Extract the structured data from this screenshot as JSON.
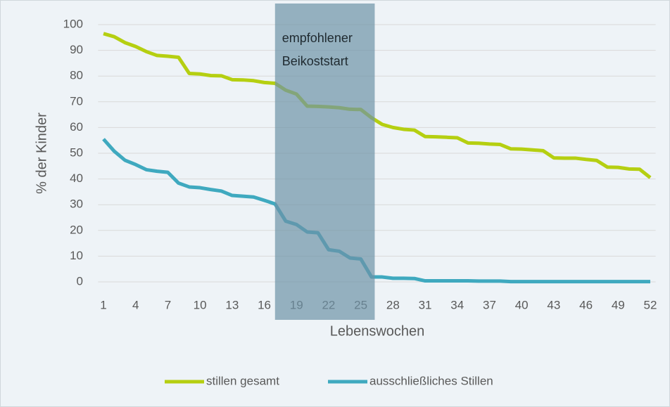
{
  "chart_data": {
    "type": "line",
    "x": [
      1,
      2,
      3,
      4,
      5,
      6,
      7,
      8,
      9,
      10,
      11,
      12,
      13,
      14,
      15,
      16,
      17,
      18,
      19,
      20,
      21,
      22,
      23,
      24,
      25,
      26,
      27,
      28,
      29,
      30,
      31,
      32,
      33,
      34,
      35,
      36,
      37,
      38,
      39,
      40,
      41,
      42,
      43,
      44,
      45,
      46,
      47,
      48,
      49,
      50,
      51,
      52
    ],
    "series": [
      {
        "name": "stillen gesamt",
        "color": "#b5cf11",
        "values": [
          96.5,
          95.3,
          93,
          91.5,
          89.5,
          88,
          87.7,
          87.3,
          81,
          80.8,
          80.2,
          80.1,
          78.6,
          78.5,
          78.2,
          77.5,
          77.2,
          74.5,
          73,
          68.3,
          68.2,
          68,
          67.7,
          67.1,
          67,
          63.8,
          61.2,
          60,
          59.3,
          59,
          56.5,
          56.4,
          56.2,
          56,
          54,
          53.9,
          53.6,
          53.4,
          51.7,
          51.6,
          51.3,
          51,
          48.2,
          48.1,
          48.1,
          47.6,
          47.2,
          44.6,
          44.5,
          43.9,
          43.8,
          40.5
        ]
      },
      {
        "name": "ausschließliches Stillen",
        "color": "#3fa9bf",
        "values": [
          55.5,
          50.8,
          47.3,
          45.6,
          43.6,
          43,
          42.6,
          38.4,
          36.9,
          36.6,
          35.9,
          35.3,
          33.6,
          33.3,
          33,
          31.7,
          30.3,
          23.6,
          22.3,
          19.4,
          19.1,
          12.5,
          11.9,
          9.3,
          8.9,
          1.9,
          1.9,
          1.4,
          1.4,
          1.3,
          0.4,
          0.4,
          0.4,
          0.4,
          0.4,
          0.3,
          0.3,
          0.3,
          0.1,
          0.1,
          0.1,
          0.1,
          0.1,
          0.1,
          0.1,
          0.1,
          0.1,
          0.1,
          0.1,
          0.1,
          0.1,
          0.1
        ]
      }
    ],
    "xlim": [
      0.5,
      52.5
    ],
    "xticks": [
      1,
      4,
      7,
      10,
      13,
      16,
      19,
      22,
      25,
      28,
      31,
      34,
      37,
      40,
      43,
      46,
      49,
      52
    ],
    "ylim": [
      0,
      100
    ],
    "yticks": [
      0,
      10,
      20,
      30,
      40,
      50,
      60,
      70,
      80,
      90,
      100
    ],
    "grid": true,
    "xlabel": "Lebenswochen",
    "ylabel": "% der Kinder",
    "highlight": {
      "xlim": [
        17,
        26.3
      ],
      "color": "#6e93a6",
      "annotation": [
        "empfohlener",
        "Beikoststart"
      ]
    },
    "legend": "bottom"
  }
}
